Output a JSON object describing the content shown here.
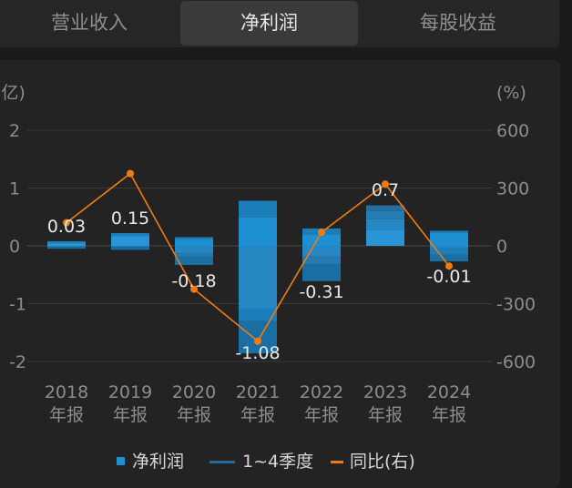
{
  "tabs": [
    {
      "label": "营业收入",
      "active": false
    },
    {
      "label": "净利润",
      "active": true
    },
    {
      "label": "每股收益",
      "active": false
    }
  ],
  "colors": {
    "background": "#1b1b1b",
    "panel": "#232323",
    "bar_main": "#1e8fd1",
    "line": "#f07b11",
    "grid": "#3a3a3a"
  },
  "chart_data": {
    "type": "bar",
    "left_unit": "(亿)",
    "right_unit": "(%)",
    "categories": [
      "2018\n年报",
      "2019\n年报",
      "2020\n年报",
      "2021\n年报",
      "2022\n年报",
      "2023\n年报",
      "2024\n年报"
    ],
    "left_ticks": [
      "2",
      "1",
      "0",
      "-1",
      "-2"
    ],
    "right_ticks": [
      "600",
      "300",
      "0",
      "-300",
      "-600"
    ],
    "ylim_left": [
      -2,
      2
    ],
    "ylim_right": [
      -600,
      600
    ],
    "series": [
      {
        "name": "净利润",
        "values": [
          0.03,
          0.15,
          -0.18,
          -1.08,
          -0.31,
          0.7,
          -0.01
        ],
        "labels": [
          "0.03",
          "0.15",
          "-0.18",
          "-1.08",
          "-0.31",
          "0.7",
          "-0.01"
        ]
      },
      {
        "name": "1~4季度",
        "quarters": [
          [
            0.06,
            0.02,
            -0.02,
            -0.03
          ],
          [
            0.18,
            0.04,
            -0.02,
            -0.05
          ],
          [
            0.12,
            0.03,
            -0.13,
            -0.2
          ],
          [
            0.5,
            0.28,
            -1.3,
            -0.56
          ],
          [
            0.2,
            0.1,
            -0.18,
            -0.43
          ],
          [
            0.28,
            0.18,
            0.14,
            0.1
          ],
          [
            0.22,
            0.04,
            -0.15,
            -0.12
          ]
        ]
      },
      {
        "name": "同比(右)",
        "values": [
          120,
          375,
          -225,
          -495,
          70,
          320,
          -105
        ]
      }
    ],
    "grid": true,
    "legend_position": "bottom"
  }
}
